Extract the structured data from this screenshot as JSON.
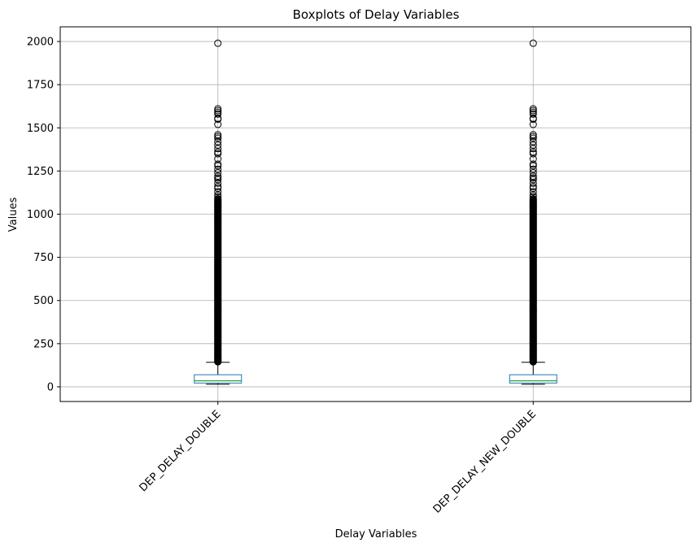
{
  "chart_data": {
    "type": "boxplot",
    "title": "Boxplots of Delay Variables",
    "xlabel": "Delay Variables",
    "ylabel": "Values",
    "ylim": [
      -85,
      2085
    ],
    "yticks": [
      0,
      250,
      500,
      750,
      1000,
      1250,
      1500,
      1750,
      2000
    ],
    "grid": true,
    "categories": [
      "DEP_DELAY_DOUBLE",
      "DEP_DELAY_NEW_DOUBLE"
    ],
    "series": [
      {
        "category": "DEP_DELAY_DOUBLE",
        "whisker_low": 15,
        "q1": 22,
        "median": 35,
        "q3": 70,
        "whisker_high": 142,
        "outliers": [
          1990,
          1610,
          1600,
          1590,
          1580,
          1555,
          1550,
          1520,
          1460,
          1450,
          1440,
          1420,
          1400,
          1380,
          1360,
          1350,
          1320,
          1290,
          1280,
          1260,
          1240,
          1220,
          1210,
          1200,
          1180,
          1160,
          1150,
          1130,
          1110,
          1100
        ]
      },
      {
        "category": "DEP_DELAY_NEW_DOUBLE",
        "whisker_low": 15,
        "q1": 22,
        "median": 35,
        "q3": 70,
        "whisker_high": 142,
        "outliers": [
          1990,
          1610,
          1600,
          1590,
          1580,
          1555,
          1550,
          1520,
          1460,
          1450,
          1440,
          1420,
          1400,
          1380,
          1360,
          1350,
          1320,
          1290,
          1280,
          1260,
          1240,
          1220,
          1210,
          1200,
          1180,
          1160,
          1150,
          1130,
          1110,
          1100
        ]
      }
    ],
    "outlier_dense_range": [
      145,
      1090
    ],
    "colors": {
      "box": "#1f77b4",
      "median": "#2ca02c",
      "whisker": "#000000",
      "grid": "#b0b0b0"
    }
  }
}
